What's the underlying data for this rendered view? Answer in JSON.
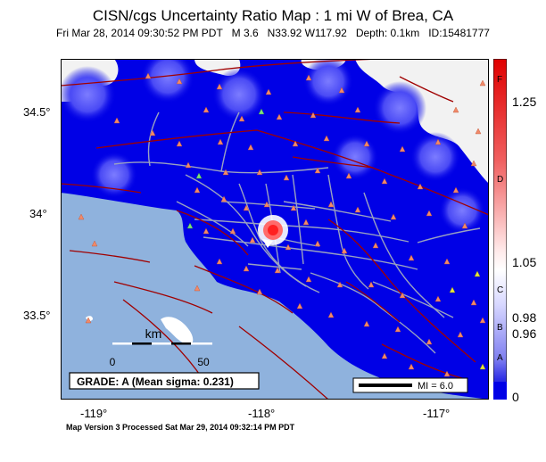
{
  "title": "CISN/cgs Uncertainty Ratio Map : 1 mi W of Brea, CA",
  "subtitle": {
    "date": "Fri Mar 28, 2014 09:30:52 PM PDT",
    "magnitude": "M 3.6",
    "location": "N33.92 W117.92",
    "depth": "Depth: 0.1km",
    "id": "ID:15481777"
  },
  "axes": {
    "y_labels": [
      "34.5°",
      "34°",
      "33.5°"
    ],
    "x_labels": [
      "-119°",
      "-118°",
      "-117°"
    ]
  },
  "scale_bar": {
    "unit": "km",
    "start": "0",
    "end": "50"
  },
  "grade_box": "GRADE: A (Mean sigma: 0.231)",
  "mi_legend": "MI = 6.0",
  "colorbar": {
    "ticks": [
      "1.25",
      "1.05",
      "0.98",
      "0.96",
      "0"
    ],
    "grades": [
      "F",
      "D",
      "C",
      "B",
      "A"
    ]
  },
  "footer": "Map Version 3 Processed Sat Mar 29, 2014 09:32:14 PM PDT",
  "colors": {
    "land_low": "#0000e6",
    "land_blob": "#4a4af5",
    "land_white": "#f2f2f2",
    "ocean": "#8fb2dd",
    "fault": "#a00000",
    "road": "#9aa2c0",
    "station": "#f08a6a",
    "station_alt": "#e6e640",
    "station_green": "#7fe07f",
    "epicenter": "#ff2020"
  }
}
